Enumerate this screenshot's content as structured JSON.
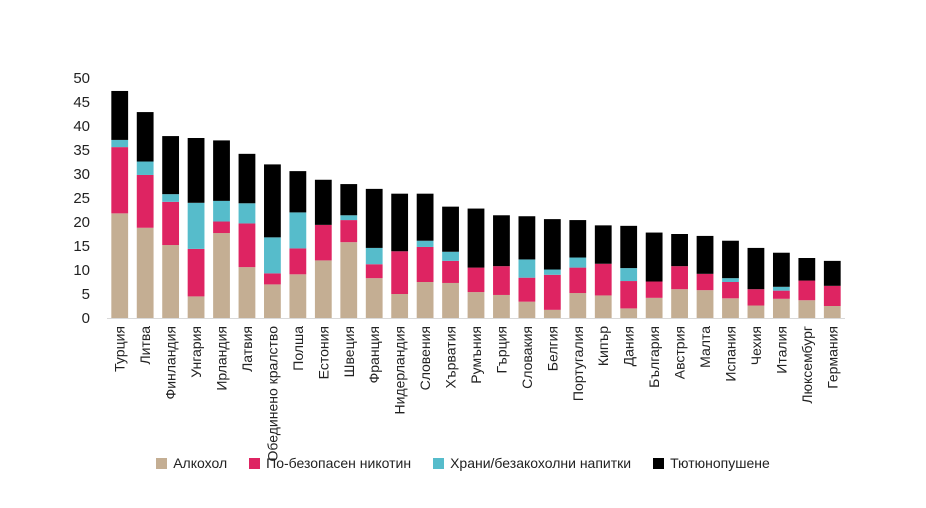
{
  "chart_data": {
    "type": "bar",
    "stacked": true,
    "categories": [
      "Турция",
      "Литва",
      "Финландия",
      "Унгария",
      "Ирландия",
      "Латвия",
      "Обединено кралство",
      "Полша",
      "Естония",
      "Швеция",
      "Франция",
      "Нидерландия",
      "Словения",
      "Хърватия",
      "Румъния",
      "Гърция",
      "Словакия",
      "Белгия",
      "Португалия",
      "Кипър",
      "Дания",
      "България",
      "Австрия",
      "Малта",
      "Испания",
      "Чехия",
      "Италия",
      "Люксембург",
      "Германия"
    ],
    "series": [
      {
        "name": "Алкохол",
        "color": "#c4ae93",
        "values": [
          21.8,
          18.8,
          15.2,
          4.5,
          17.7,
          10.6,
          7.0,
          9.1,
          12.0,
          15.8,
          8.3,
          5.0,
          7.5,
          7.3,
          5.4,
          4.8,
          3.4,
          1.7,
          5.2,
          4.7,
          2.0,
          4.2,
          6.0,
          5.8,
          4.1,
          2.6,
          4.0,
          3.7,
          2.5
        ]
      },
      {
        "name": "По-безопасен никотин",
        "color": "#de2462",
        "values": [
          13.8,
          11.0,
          9.0,
          9.9,
          2.4,
          9.1,
          2.3,
          5.4,
          7.4,
          4.6,
          2.9,
          8.9,
          7.3,
          4.6,
          5.1,
          6.0,
          5.0,
          7.3,
          5.3,
          6.6,
          5.7,
          3.4,
          4.8,
          3.4,
          3.4,
          3.4,
          1.7,
          4.1,
          4.2
        ]
      },
      {
        "name": "Храни/безакохолни напитки",
        "color": "#56bccb",
        "values": [
          1.5,
          2.8,
          1.6,
          9.6,
          4.3,
          4.2,
          7.5,
          7.5,
          0.0,
          1.0,
          3.4,
          0.0,
          1.3,
          1.9,
          0.0,
          0.0,
          3.8,
          1.1,
          2.1,
          0.0,
          2.7,
          0.0,
          0.0,
          0.0,
          0.8,
          0.0,
          0.8,
          0.0,
          0.0
        ]
      },
      {
        "name": "Тютюнопушене",
        "color": "#000000",
        "values": [
          10.2,
          10.3,
          12.1,
          13.5,
          12.6,
          10.3,
          15.2,
          8.6,
          9.4,
          6.5,
          12.3,
          12.0,
          9.8,
          9.4,
          12.3,
          10.6,
          9.0,
          10.5,
          7.8,
          8.0,
          8.8,
          10.2,
          6.7,
          7.9,
          7.8,
          8.6,
          7.1,
          4.7,
          5.2
        ]
      }
    ],
    "ylim": [
      0,
      50
    ],
    "yticks": [
      0,
      5,
      10,
      15,
      20,
      25,
      30,
      35,
      40,
      45,
      50
    ],
    "grid": false,
    "legend_position": "bottom"
  }
}
